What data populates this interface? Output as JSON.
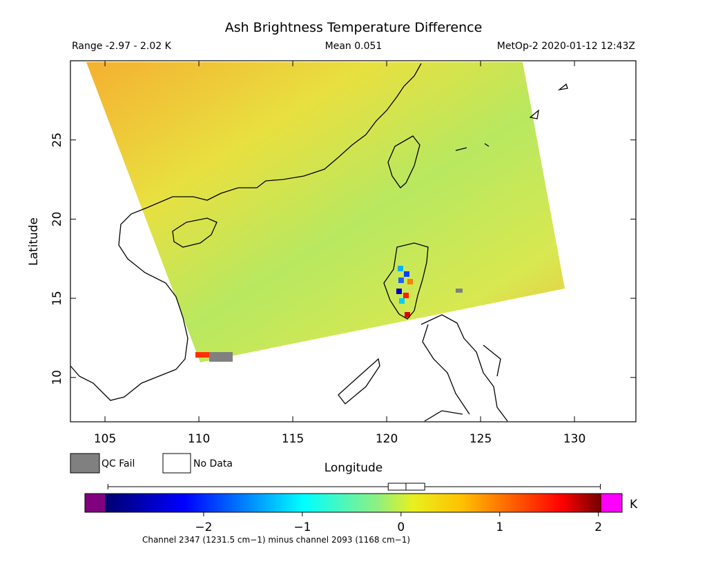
{
  "title": "Ash Brightness Temperature Difference",
  "info": {
    "range": "Range -2.97 - 2.02 K",
    "mean": "Mean 0.051",
    "source": "MetOp-2 2020-01-12 12:43Z"
  },
  "map": {
    "xlabel": "Longitude",
    "ylabel": "Latitude",
    "xlim": [
      103.16,
      133.27
    ],
    "ylim": [
      7.2,
      30.0
    ],
    "xticks": [
      105,
      110,
      115,
      120,
      125,
      130
    ],
    "yticks": [
      10,
      15,
      20,
      25
    ]
  },
  "legend": [
    "QC Fail",
    "No Data"
  ],
  "colorbar": {
    "unit": "K",
    "clim": [
      -3.0,
      2.03
    ],
    "ticks": [
      {
        "value": -2,
        "label": "−2"
      },
      {
        "value": -1,
        "label": "−1"
      },
      0,
      1,
      2
    ],
    "boxplot": {
      "min": -2.97,
      "q1": -0.13,
      "median": 0.05,
      "q3": 0.24,
      "max": 2.02
    }
  },
  "footnote": "Channel 2347 (1231.5 cm−1) minus channel 2093 (1168 cm−1)"
}
